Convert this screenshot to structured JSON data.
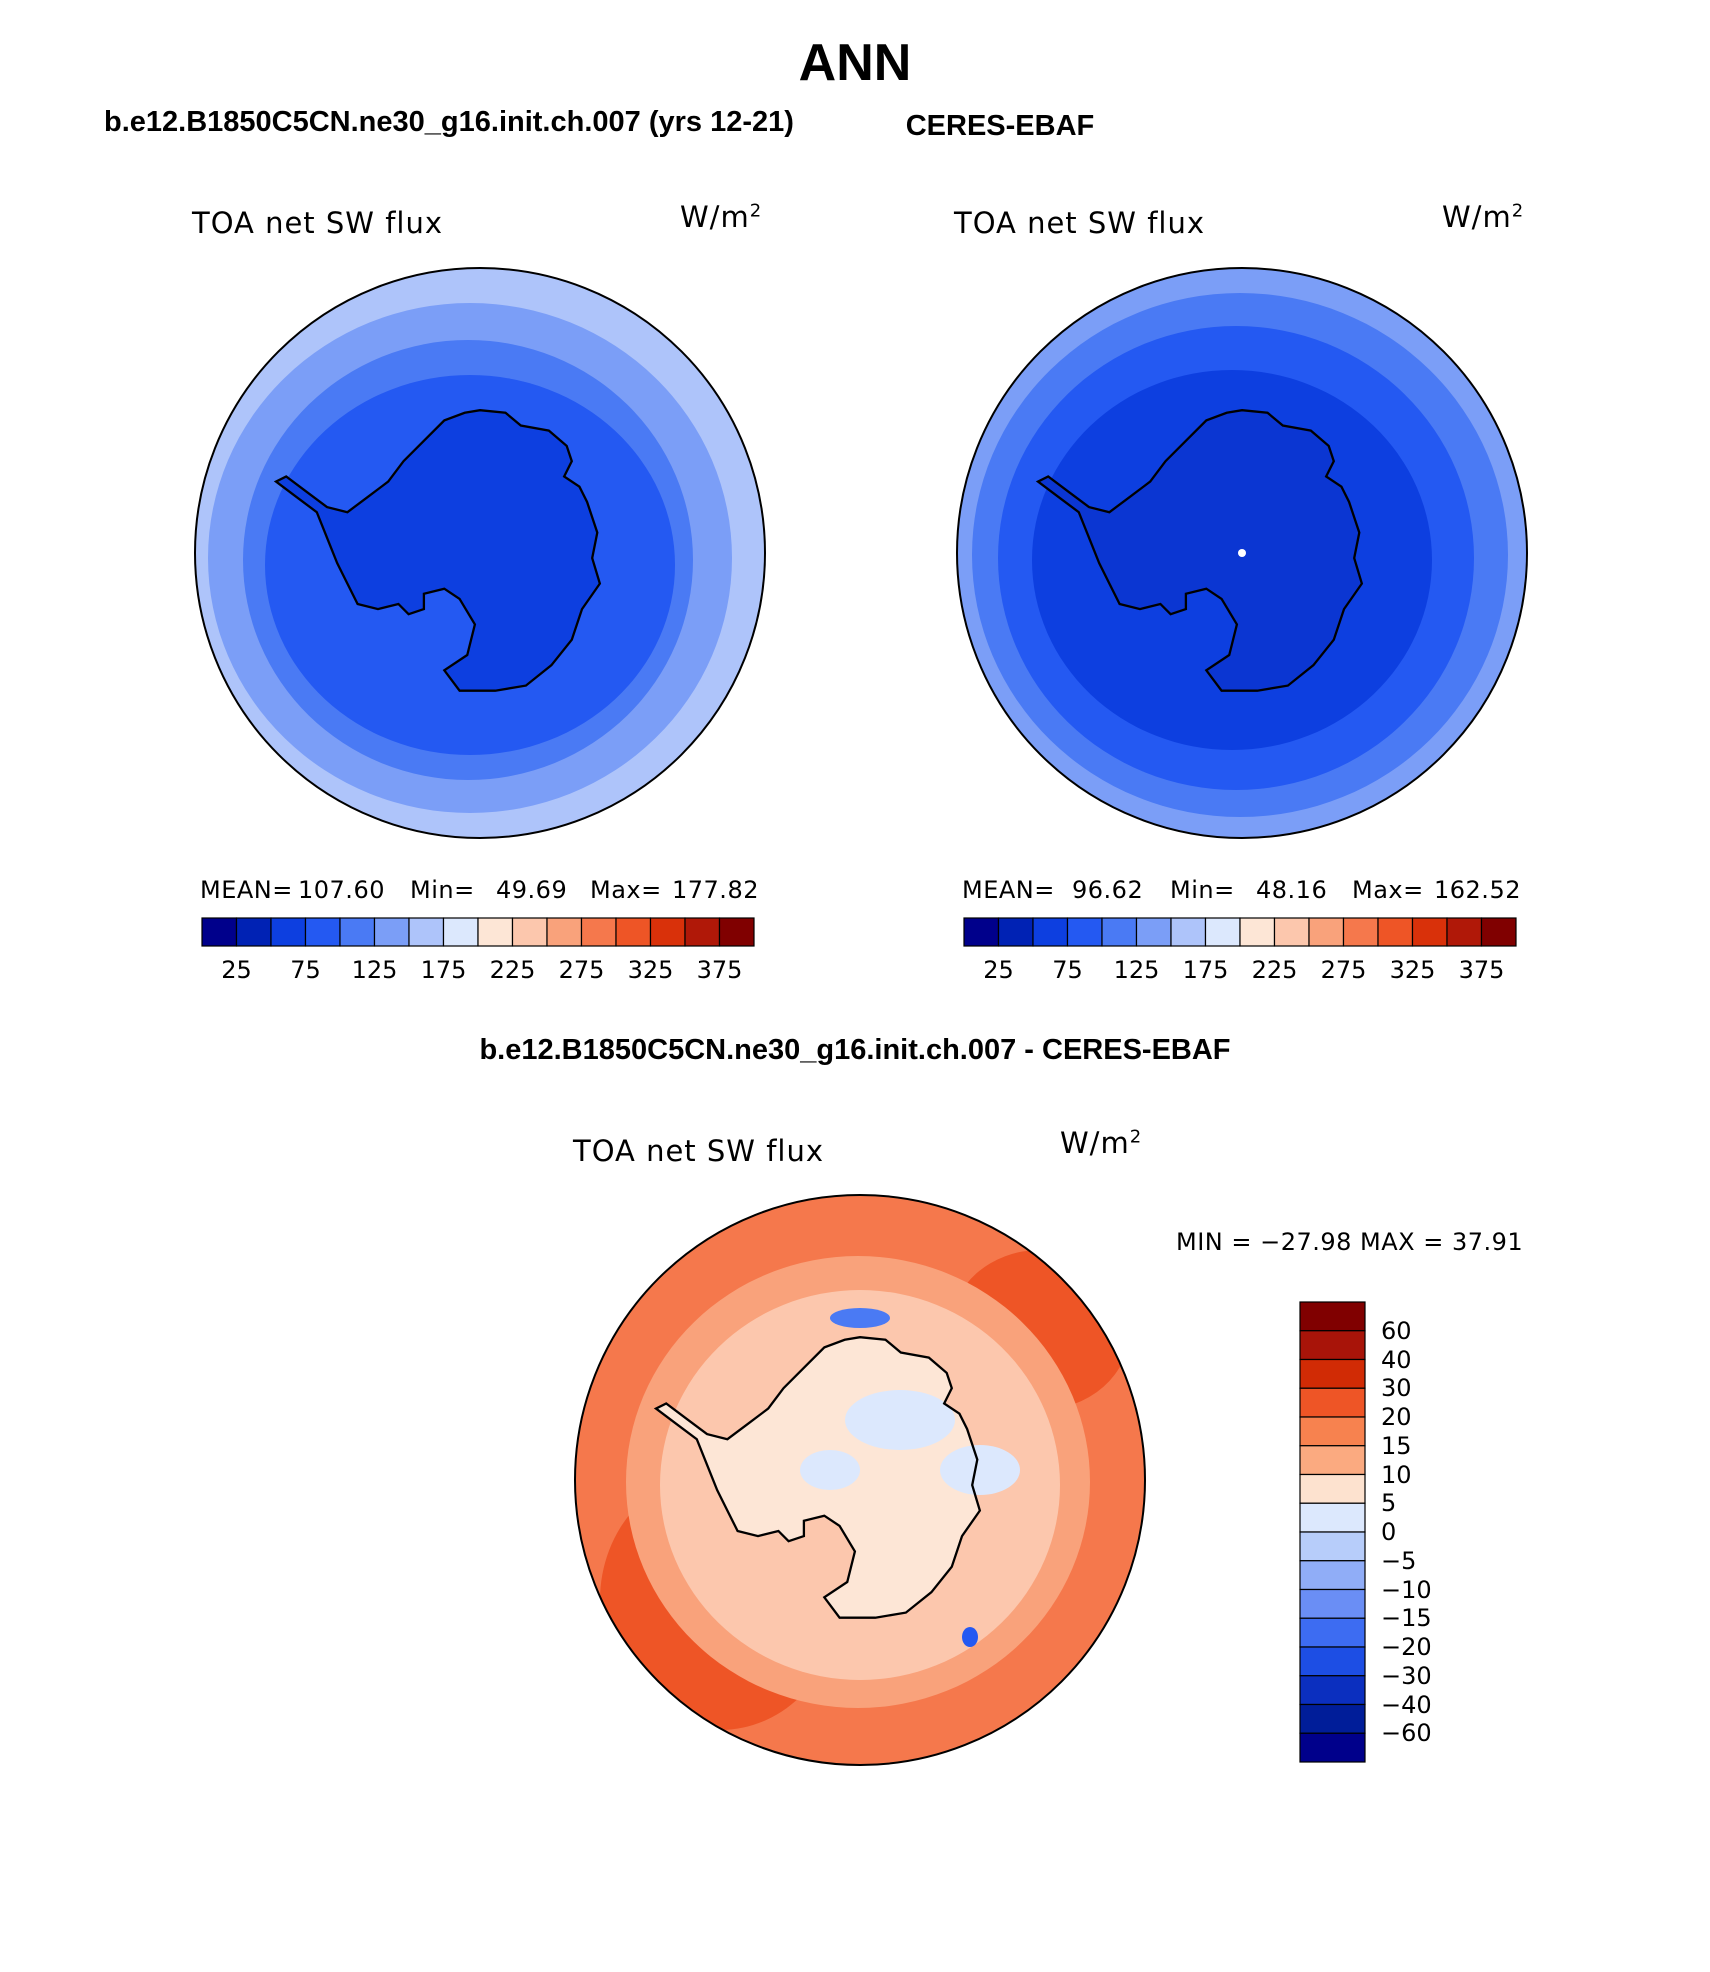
{
  "figure": {
    "title": "ANN",
    "panels": [
      {
        "id": "model",
        "case_title": "b.e12.B1850C5CN.ne30_g16.init.ch.007 (yrs 12-21)",
        "variable": "TOA net SW flux",
        "units_base": "W/m",
        "units_exp": "2",
        "mean_label": "MEAN=",
        "mean_value": "107.60",
        "min_label": "Min=",
        "min_value": "49.69",
        "max_label": "Max=",
        "max_value": "177.82"
      },
      {
        "id": "obs",
        "case_title": "CERES-EBAF",
        "variable": "TOA net SW flux",
        "units_base": "W/m",
        "units_exp": "2",
        "mean_label": "MEAN=",
        "mean_value": "96.62",
        "min_label": "Min=",
        "min_value": "48.16",
        "max_label": "Max=",
        "max_value": "162.52"
      }
    ],
    "field_colorbar": {
      "colors": [
        "#00008b",
        "#0022b4",
        "#0d3fe0",
        "#2459f2",
        "#4a7af4",
        "#7b9ef7",
        "#aec4fa",
        "#dce8fd",
        "#fde6d6",
        "#fcc7ad",
        "#f9a27b",
        "#f5784c",
        "#ee5526",
        "#d9310a",
        "#b01808",
        "#800000"
      ],
      "labels": [
        "25",
        "75",
        "125",
        "175",
        "225",
        "275",
        "325",
        "375"
      ]
    },
    "diff_panel": {
      "title": "b.e12.B1850C5CN.ne30_g16.init.ch.007 - CERES-EBAF",
      "variable": "TOA net SW flux",
      "units_base": "W/m",
      "units_exp": "2",
      "minmax_text": "MIN = −27.98 MAX =   37.91",
      "colorbar": {
        "colors_top_to_bottom": [
          "#800000",
          "#a81409",
          "#d12b05",
          "#ee5526",
          "#f7824f",
          "#fbaa80",
          "#fde2cf",
          "#dce8fd",
          "#b7cdfa",
          "#90adf7",
          "#6a8ef5",
          "#3d6cf2",
          "#1d4ee4",
          "#0b2fbf",
          "#001d99",
          "#00008b"
        ],
        "labels": [
          "60",
          "40",
          "30",
          "20",
          "15",
          "10",
          "5",
          "0",
          "−5",
          "−10",
          "−15",
          "−20",
          "−30",
          "−40",
          "−60"
        ]
      }
    }
  }
}
